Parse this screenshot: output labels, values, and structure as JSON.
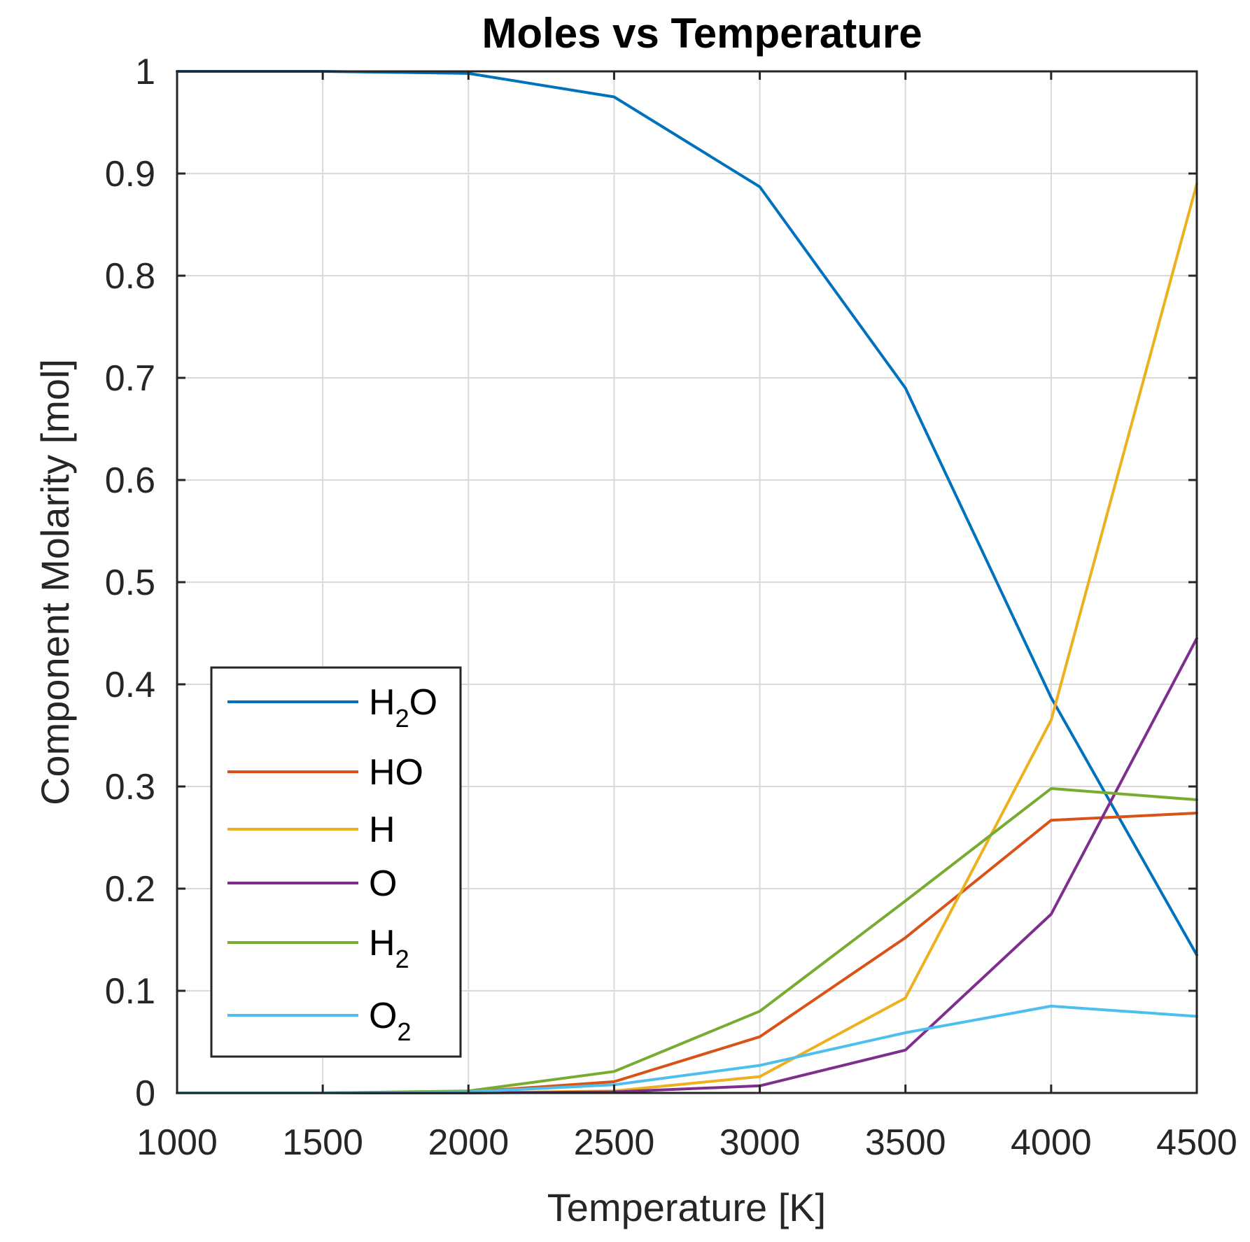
{
  "chart_data": {
    "type": "line",
    "title": "Moles vs Temperature",
    "xlabel": "Temperature [K]",
    "ylabel": "Component Molarity [mol]",
    "xlim": [
      1000,
      4500
    ],
    "ylim": [
      0,
      1
    ],
    "grid": true,
    "legend_position": "bottom-left",
    "x": [
      1000,
      1500,
      2000,
      2500,
      3000,
      3500,
      4000,
      4500
    ],
    "x_ticks": [
      "1000",
      "1500",
      "2000",
      "2500",
      "3000",
      "3500",
      "4000",
      "4500"
    ],
    "y_ticks": [
      "0",
      "0.1",
      "0.2",
      "0.3",
      "0.4",
      "0.5",
      "0.6",
      "0.7",
      "0.8",
      "0.9",
      "1"
    ],
    "series": [
      {
        "key": "h2o",
        "name": "H2O",
        "label_main": "H",
        "label_sub": "2",
        "label_tail": "O",
        "color": "#0072BD",
        "values": [
          1.0,
          1.0,
          0.998,
          0.975,
          0.887,
          0.69,
          0.387,
          0.135
        ]
      },
      {
        "key": "ho",
        "name": "HO",
        "label_main": "HO",
        "label_sub": "",
        "label_tail": "",
        "color": "#D95319",
        "values": [
          0.0,
          0.0,
          0.001,
          0.011,
          0.055,
          0.152,
          0.267,
          0.274
        ]
      },
      {
        "key": "h",
        "name": "H",
        "label_main": "H",
        "label_sub": "",
        "label_tail": "",
        "color": "#EDB120",
        "values": [
          0.0,
          0.0,
          0.0,
          0.002,
          0.016,
          0.093,
          0.365,
          0.89
        ]
      },
      {
        "key": "o",
        "name": "O",
        "label_main": "O",
        "label_sub": "",
        "label_tail": "",
        "color": "#7E2F8E",
        "values": [
          0.0,
          0.0,
          0.0,
          0.001,
          0.007,
          0.042,
          0.175,
          0.445
        ]
      },
      {
        "key": "h2",
        "name": "H2",
        "label_main": "H",
        "label_sub": "2",
        "label_tail": "",
        "color": "#77AC30",
        "values": [
          0.0,
          0.0,
          0.002,
          0.021,
          0.08,
          0.188,
          0.298,
          0.287
        ]
      },
      {
        "key": "o2",
        "name": "O2",
        "label_main": "O",
        "label_sub": "2",
        "label_tail": "",
        "color": "#4DBEEE",
        "values": [
          0.0,
          0.0,
          0.001,
          0.008,
          0.027,
          0.059,
          0.085,
          0.075
        ]
      }
    ]
  }
}
